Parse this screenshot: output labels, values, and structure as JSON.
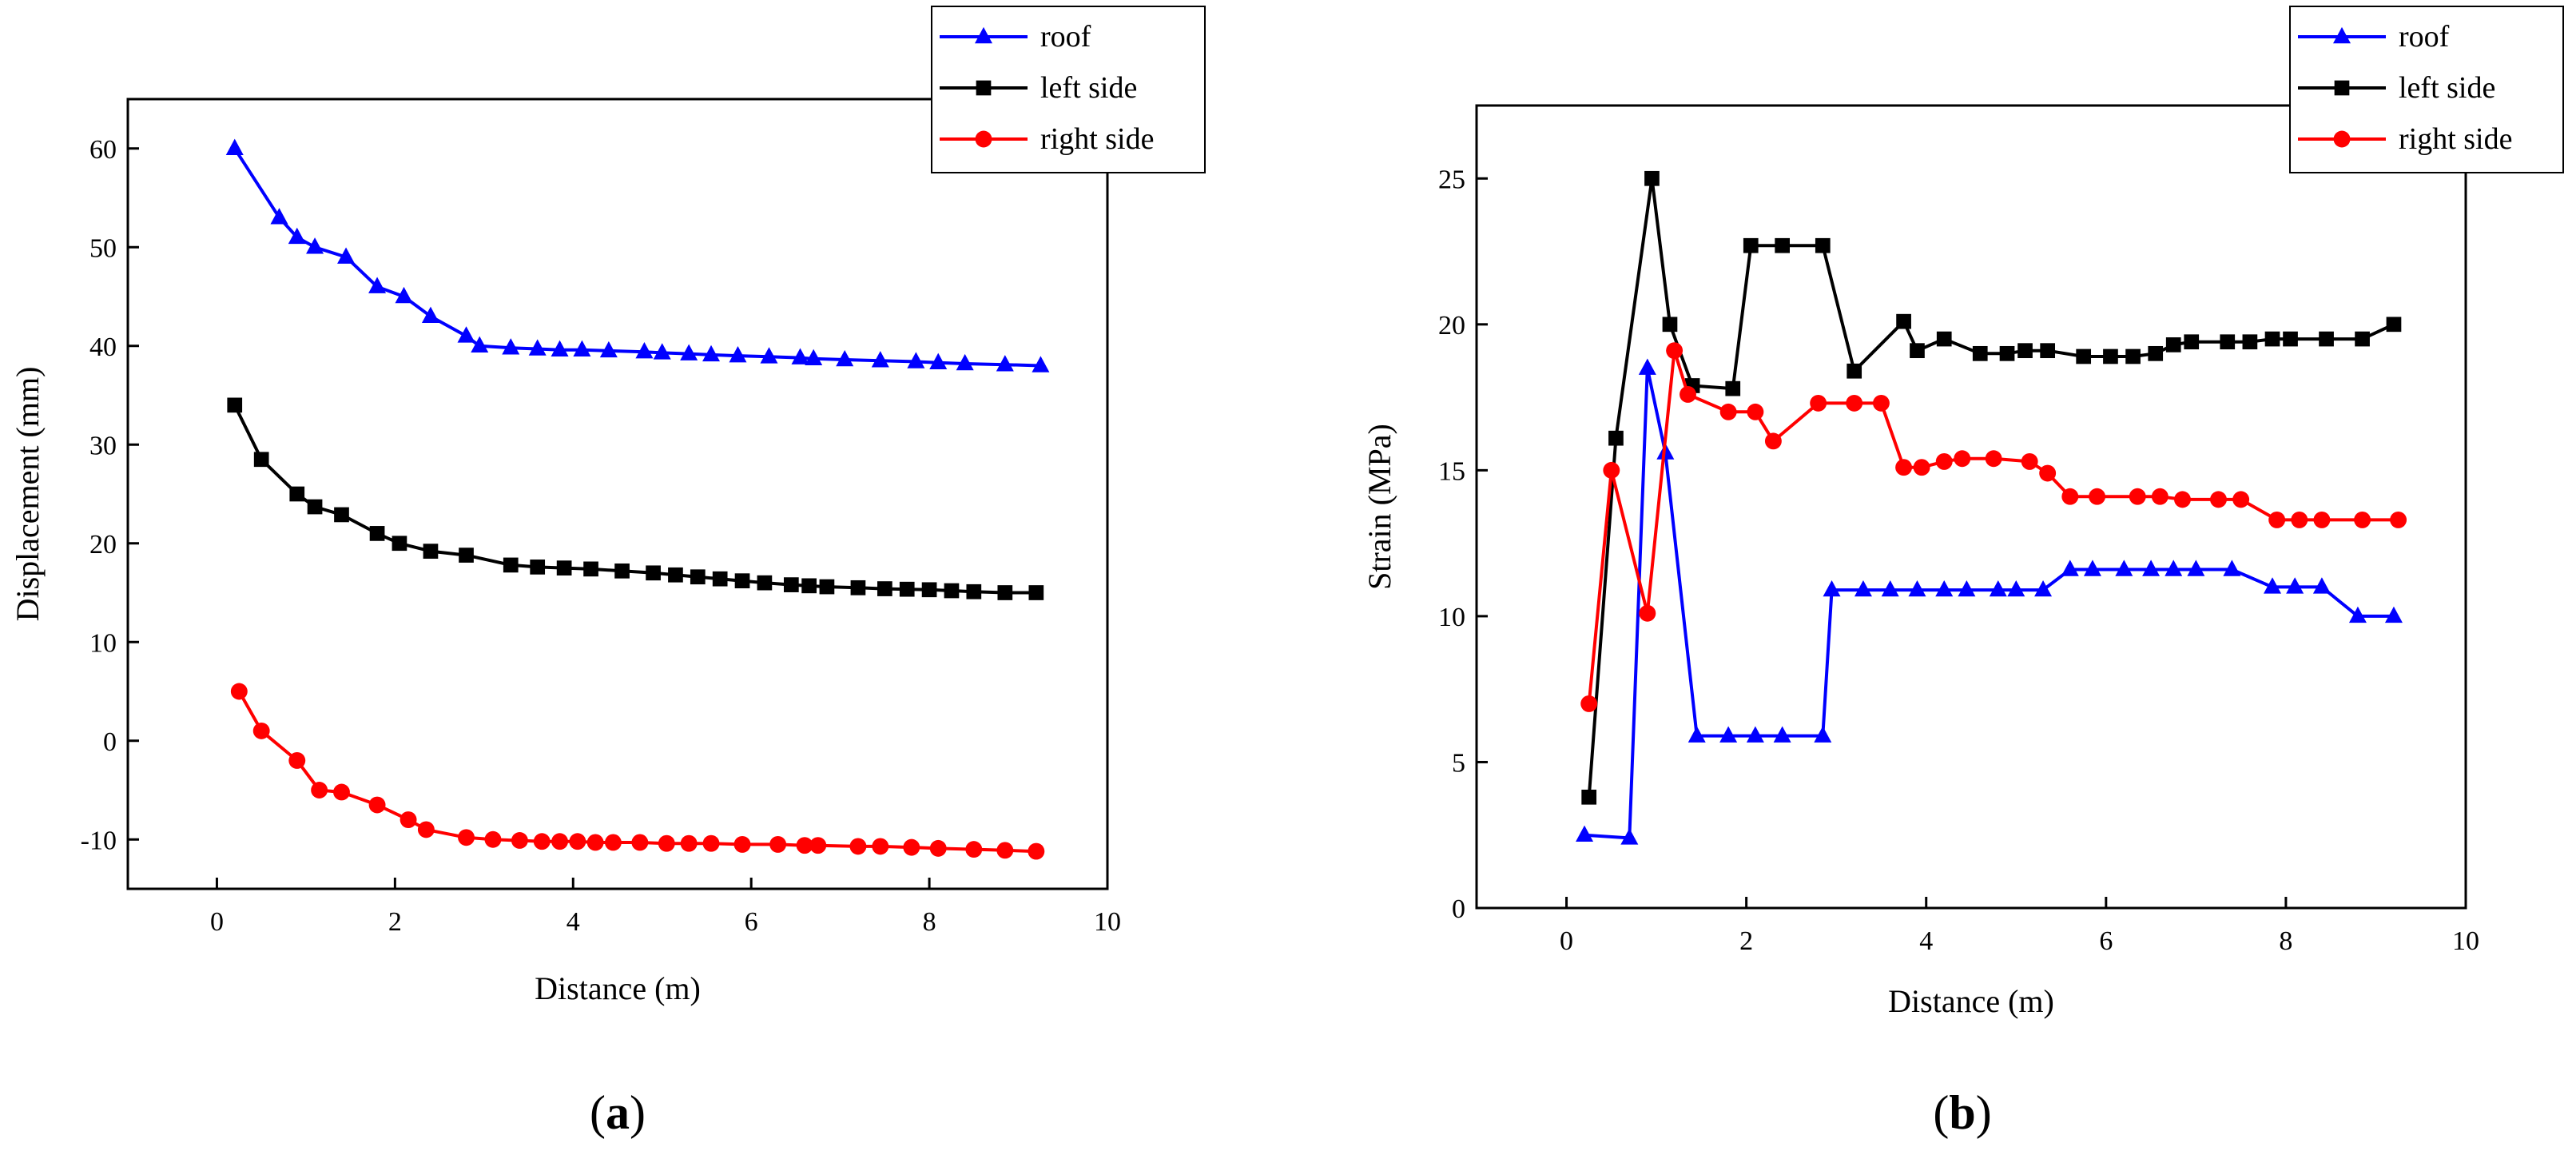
{
  "chart_data": [
    {
      "type": "line",
      "panel_label": "a",
      "xlabel": "Distance (m)",
      "ylabel": "Displacement (mm)",
      "xlim": [
        -1,
        10
      ],
      "ylim": [
        -15,
        65
      ],
      "xticks": [
        0,
        2,
        4,
        6,
        8,
        10
      ],
      "yticks": [
        -10,
        0,
        10,
        20,
        30,
        40,
        50,
        60
      ],
      "legend_position": "top-right",
      "series": [
        {
          "name": "roof",
          "color": "#0000ff",
          "marker": "triangle",
          "x": [
            0.2,
            0.7,
            0.9,
            1.1,
            1.45,
            1.8,
            2.1,
            2.4,
            2.8,
            2.95,
            3.3,
            3.6,
            3.85,
            4.1,
            4.4,
            4.8,
            5.0,
            5.3,
            5.55,
            5.85,
            6.2,
            6.55,
            6.7,
            7.05,
            7.45,
            7.85,
            8.1,
            8.4,
            8.85,
            9.25
          ],
          "y": [
            60,
            53,
            51,
            50,
            49,
            46,
            45,
            43,
            41,
            40,
            39.8,
            39.7,
            39.6,
            39.6,
            39.5,
            39.4,
            39.3,
            39.2,
            39.1,
            39.0,
            38.9,
            38.8,
            38.7,
            38.6,
            38.5,
            38.4,
            38.3,
            38.2,
            38.1,
            38.0
          ]
        },
        {
          "name": "left side",
          "color": "#000000",
          "marker": "square",
          "x": [
            0.2,
            0.5,
            0.9,
            1.1,
            1.4,
            1.8,
            2.05,
            2.4,
            2.8,
            3.3,
            3.6,
            3.9,
            4.2,
            4.55,
            4.9,
            5.15,
            5.4,
            5.65,
            5.9,
            6.15,
            6.45,
            6.65,
            6.85,
            7.2,
            7.5,
            7.75,
            8.0,
            8.25,
            8.5,
            8.85,
            9.2
          ],
          "y": [
            34,
            28.5,
            25,
            23.7,
            22.9,
            21,
            20,
            19.2,
            18.8,
            17.8,
            17.6,
            17.5,
            17.4,
            17.2,
            17.0,
            16.8,
            16.6,
            16.4,
            16.2,
            16.0,
            15.8,
            15.7,
            15.6,
            15.5,
            15.4,
            15.35,
            15.3,
            15.2,
            15.1,
            15.0,
            15.0
          ]
        },
        {
          "name": "right side",
          "color": "#ff0000",
          "marker": "circle",
          "x": [
            0.25,
            0.5,
            0.9,
            1.15,
            1.4,
            1.8,
            2.15,
            2.35,
            2.8,
            3.1,
            3.4,
            3.65,
            3.85,
            4.05,
            4.25,
            4.45,
            4.75,
            5.05,
            5.3,
            5.55,
            5.9,
            6.3,
            6.6,
            6.75,
            7.2,
            7.45,
            7.8,
            8.1,
            8.5,
            8.85,
            9.2
          ],
          "y": [
            5,
            1,
            -2,
            -5,
            -5.2,
            -6.5,
            -8,
            -9,
            -9.8,
            -10,
            -10.1,
            -10.2,
            -10.2,
            -10.2,
            -10.3,
            -10.3,
            -10.3,
            -10.4,
            -10.4,
            -10.4,
            -10.5,
            -10.5,
            -10.6,
            -10.6,
            -10.7,
            -10.7,
            -10.8,
            -10.9,
            -11,
            -11.1,
            -11.2
          ]
        }
      ]
    },
    {
      "type": "line",
      "panel_label": "b",
      "xlabel": "Distance (m)",
      "ylabel": "Strain (MPa)",
      "xlim": [
        -1,
        10
      ],
      "ylim": [
        0,
        27.5
      ],
      "xticks": [
        0,
        2,
        4,
        6,
        8,
        10
      ],
      "yticks": [
        0,
        5,
        10,
        15,
        20,
        25
      ],
      "legend_position": "top-right",
      "series": [
        {
          "name": "roof",
          "color": "#0000ff",
          "marker": "triangle",
          "x": [
            0.2,
            0.7,
            0.9,
            1.1,
            1.45,
            1.8,
            2.1,
            2.4,
            2.85,
            2.95,
            3.3,
            3.6,
            3.9,
            4.2,
            4.45,
            4.8,
            5.0,
            5.3,
            5.6,
            5.85,
            6.2,
            6.5,
            6.75,
            7.0,
            7.4,
            7.85,
            8.1,
            8.4,
            8.8,
            9.2
          ],
          "y": [
            2.5,
            2.4,
            18.5,
            15.6,
            5.9,
            5.9,
            5.9,
            5.9,
            5.9,
            10.9,
            10.9,
            10.9,
            10.9,
            10.9,
            10.9,
            10.9,
            10.9,
            10.9,
            11.6,
            11.6,
            11.6,
            11.6,
            11.6,
            11.6,
            11.6,
            11.0,
            11.0,
            11.0,
            10.0,
            10.0
          ]
        },
        {
          "name": "left side",
          "color": "#000000",
          "marker": "square",
          "x": [
            0.25,
            0.55,
            0.95,
            1.15,
            1.4,
            1.85,
            2.05,
            2.4,
            2.85,
            3.2,
            3.75,
            3.9,
            4.2,
            4.6,
            4.9,
            5.1,
            5.35,
            5.75,
            6.05,
            6.3,
            6.55,
            6.75,
            6.95,
            7.35,
            7.6,
            7.85,
            8.05,
            8.45,
            8.85,
            9.2
          ],
          "y": [
            3.8,
            16.1,
            25,
            20,
            17.9,
            17.8,
            22.7,
            22.7,
            22.7,
            18.4,
            20.1,
            19.1,
            19.5,
            19.0,
            19.0,
            19.1,
            19.1,
            18.9,
            18.9,
            18.9,
            19.0,
            19.3,
            19.4,
            19.4,
            19.4,
            19.5,
            19.5,
            19.5,
            19.5,
            20.0
          ]
        },
        {
          "name": "right side",
          "color": "#ff0000",
          "marker": "circle",
          "x": [
            0.25,
            0.5,
            0.9,
            1.2,
            1.35,
            1.8,
            2.1,
            2.3,
            2.8,
            3.2,
            3.5,
            3.75,
            3.95,
            4.2,
            4.4,
            4.75,
            5.15,
            5.35,
            5.6,
            5.9,
            6.35,
            6.6,
            6.85,
            7.25,
            7.5,
            7.9,
            8.15,
            8.4,
            8.85,
            9.25
          ],
          "y": [
            7,
            15,
            10.1,
            19.1,
            17.6,
            17.0,
            17.0,
            16.0,
            17.3,
            17.3,
            17.3,
            15.1,
            15.1,
            15.3,
            15.4,
            15.4,
            15.3,
            14.9,
            14.1,
            14.1,
            14.1,
            14.1,
            14.0,
            14.0,
            14.0,
            13.3,
            13.3,
            13.3,
            13.3,
            13.3
          ]
        }
      ]
    }
  ]
}
